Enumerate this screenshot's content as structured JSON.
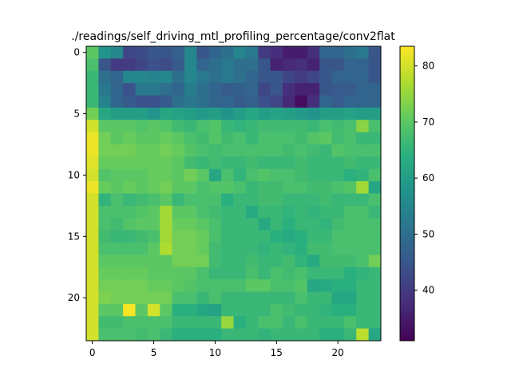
{
  "chart_data": {
    "type": "heatmap",
    "title": "./readings/self_driving_mtl_profiling_percentage/conv2flat",
    "rows": 24,
    "cols": 24,
    "x_ticks": [
      0,
      5,
      10,
      15,
      20
    ],
    "y_ticks": [
      0,
      5,
      10,
      15,
      20
    ],
    "colorbar": {
      "vmin": 31,
      "vmax": 83.5,
      "ticks": [
        40,
        50,
        60,
        70,
        80
      ]
    },
    "colormap": "viridis",
    "values": [
      [
        70,
        58,
        55,
        42,
        43,
        45,
        45,
        47,
        55,
        45,
        48,
        50,
        55,
        52,
        40,
        38,
        35,
        35,
        38,
        48,
        48,
        50,
        52,
        45
      ],
      [
        68,
        45,
        40,
        40,
        42,
        44,
        43,
        46,
        55,
        48,
        50,
        52,
        50,
        50,
        45,
        36,
        37,
        38,
        36,
        45,
        45,
        48,
        48,
        45
      ],
      [
        66,
        50,
        48,
        55,
        55,
        54,
        55,
        50,
        55,
        52,
        50,
        52,
        50,
        48,
        45,
        45,
        42,
        40,
        42,
        45,
        48,
        48,
        48,
        45
      ],
      [
        66,
        52,
        48,
        44,
        52,
        52,
        50,
        48,
        53,
        50,
        48,
        46,
        47,
        48,
        42,
        45,
        38,
        36,
        36,
        45,
        46,
        46,
        48,
        48
      ],
      [
        66,
        54,
        48,
        46,
        44,
        44,
        46,
        50,
        52,
        50,
        48,
        48,
        46,
        47,
        44,
        42,
        37,
        33,
        38,
        48,
        46,
        48,
        48,
        48
      ],
      [
        72,
        62,
        60,
        60,
        60,
        58,
        62,
        61,
        60,
        59,
        60,
        58,
        60,
        62,
        60,
        61,
        60,
        59,
        58,
        60,
        60,
        61,
        60,
        60
      ],
      [
        80,
        70,
        70,
        70,
        69,
        70,
        69,
        67,
        66,
        68,
        69,
        66,
        65,
        66,
        67,
        67,
        67,
        67,
        66,
        68,
        67,
        68,
        74,
        68
      ],
      [
        82,
        72,
        70,
        71,
        70,
        70,
        71,
        70,
        68,
        67,
        69,
        67,
        68,
        66,
        68,
        68,
        68,
        67,
        69,
        70,
        67,
        68,
        66,
        66
      ],
      [
        82,
        72,
        72,
        72,
        71,
        71,
        72,
        71,
        69,
        68,
        67,
        68,
        68,
        68,
        68,
        68,
        67,
        68,
        67,
        66,
        69,
        68,
        68,
        68
      ],
      [
        81,
        71,
        71,
        71,
        71,
        71,
        71,
        70,
        67,
        66,
        67,
        66,
        66,
        67,
        66,
        66,
        66,
        67,
        66,
        66,
        66,
        67,
        66,
        66
      ],
      [
        80,
        69,
        70,
        70,
        70,
        71,
        71,
        70,
        72,
        70,
        62,
        68,
        65,
        68,
        69,
        68,
        68,
        67,
        66,
        66,
        66,
        64,
        65,
        68
      ],
      [
        82,
        71,
        70,
        71,
        70,
        71,
        72,
        70,
        70,
        68,
        69,
        69,
        68,
        66,
        67,
        67,
        68,
        68,
        67,
        67,
        68,
        69,
        76,
        62
      ],
      [
        80,
        65,
        68,
        66,
        67,
        68,
        70,
        66,
        68,
        68,
        68,
        64,
        66,
        66,
        67,
        67,
        66,
        66,
        66,
        67,
        66,
        66,
        66,
        68
      ],
      [
        80,
        68,
        68,
        68,
        69,
        70,
        76,
        70,
        70,
        68,
        67,
        66,
        66,
        63,
        66,
        66,
        65,
        66,
        65,
        66,
        66,
        68,
        68,
        66
      ],
      [
        80,
        68,
        67,
        69,
        70,
        70,
        76,
        71,
        71,
        70,
        68,
        66,
        66,
        66,
        63,
        66,
        64,
        66,
        66,
        65,
        67,
        68,
        68,
        68
      ],
      [
        80,
        67,
        66,
        66,
        67,
        68,
        76,
        72,
        72,
        71,
        68,
        66,
        66,
        66,
        66,
        64,
        63,
        64,
        66,
        66,
        68,
        68,
        68,
        68
      ],
      [
        80,
        68,
        68,
        68,
        68,
        70,
        77,
        72,
        72,
        71,
        67,
        66,
        66,
        66,
        65,
        66,
        65,
        64,
        67,
        67,
        68,
        68,
        68,
        68
      ],
      [
        80,
        70,
        70,
        70,
        70,
        70,
        70,
        72,
        72,
        72,
        67,
        66,
        66,
        67,
        66,
        66,
        67,
        65,
        63,
        67,
        67,
        67,
        68,
        72
      ],
      [
        80,
        71,
        71,
        71,
        71,
        70,
        70,
        70,
        70,
        68,
        66,
        66,
        66,
        68,
        66,
        68,
        67,
        68,
        66,
        66,
        66,
        64,
        65,
        66
      ],
      [
        80,
        72,
        72,
        72,
        72,
        71,
        71,
        70,
        69,
        68,
        68,
        68,
        68,
        70,
        70,
        68,
        68,
        69,
        62,
        63,
        64,
        64,
        66,
        66
      ],
      [
        80,
        73,
        72,
        72,
        72,
        72,
        72,
        68,
        68,
        66,
        68,
        66,
        66,
        66,
        66,
        66,
        66,
        68,
        66,
        66,
        62,
        62,
        66,
        66
      ],
      [
        80,
        70,
        70,
        83,
        70,
        80,
        70,
        64,
        64,
        62,
        61,
        66,
        66,
        66,
        66,
        68,
        67,
        66,
        66,
        65,
        64,
        64,
        66,
        66
      ],
      [
        80,
        67,
        67,
        68,
        68,
        68,
        68,
        66,
        66,
        66,
        66,
        75,
        64,
        66,
        68,
        68,
        66,
        68,
        66,
        66,
        66,
        68,
        66,
        66
      ],
      [
        80,
        68,
        68,
        68,
        67,
        68,
        66,
        64,
        64,
        64,
        64,
        66,
        66,
        66,
        65,
        66,
        66,
        66,
        66,
        64,
        64,
        66,
        78,
        62
      ]
    ]
  }
}
